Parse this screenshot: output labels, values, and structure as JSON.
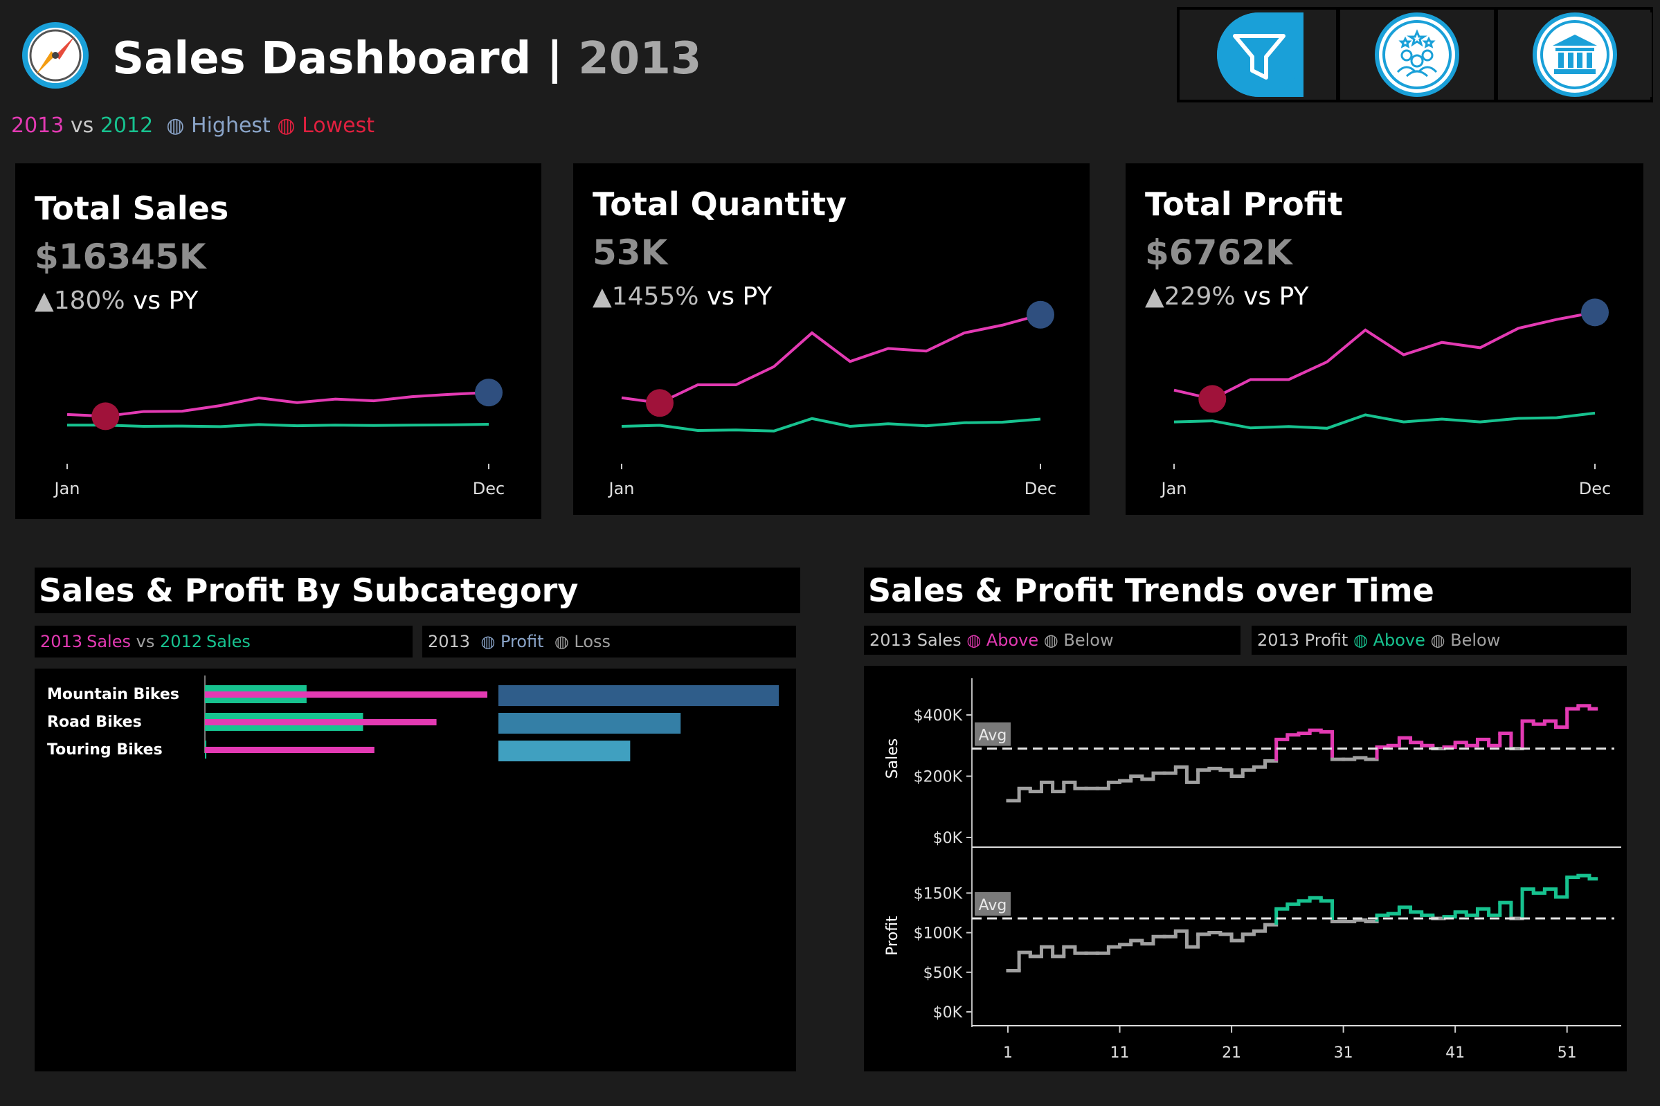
{
  "header": {
    "title": "Sales Dashboard",
    "separator": "|",
    "year": "2013",
    "logo_icon": "compass-icon",
    "nav": [
      {
        "icon": "filter-icon",
        "active": true
      },
      {
        "icon": "team-stars-icon",
        "active": false
      },
      {
        "icon": "bank-icon",
        "active": false
      }
    ]
  },
  "legend": {
    "current_year": "2013",
    "vs": "vs",
    "prior_year": "2012",
    "highest": "Highest",
    "lowest": "Lowest"
  },
  "colors": {
    "current": "#e33ab3",
    "prior": "#17c28f",
    "highest": "#2f4f7f",
    "lowest": "#a0123a",
    "bar_dark": "#2f5d8a",
    "bar_mid": "#347fa6",
    "bar_light": "#40a0c0",
    "nav_active": "#1aa0d8"
  },
  "kpis": [
    {
      "title": "Total Sales",
      "value": "$16345K",
      "delta_arrow": "▲",
      "delta_pct": "180%",
      "delta_label": "vs PY",
      "start_label": "Jan",
      "end_label": "Dec"
    },
    {
      "title": "Total Quantity",
      "value": "53K",
      "delta_arrow": "▲",
      "delta_pct": "1455%",
      "delta_label": "vs PY",
      "start_label": "Jan",
      "end_label": "Dec"
    },
    {
      "title": "Total Profit",
      "value": "$6762K",
      "delta_arrow": "▲",
      "delta_pct": "229%",
      "delta_label": "vs PY",
      "start_label": "Jan",
      "end_label": "Dec"
    }
  ],
  "subcategory": {
    "title": "Sales & Profit By Subcategory",
    "legend_left": {
      "y1": "2013",
      "s1": "Sales",
      "vs": "vs",
      "y2": "2012",
      "s2": "Sales"
    },
    "legend_right": {
      "year": "2013",
      "profit": "Profit",
      "loss": "Loss"
    }
  },
  "trends": {
    "title": "Sales & Profit Trends over Time",
    "legend_sales": {
      "year": "2013",
      "measure": "Sales",
      "above": "Above",
      "below": "Below"
    },
    "legend_profit": {
      "year": "2013",
      "measure": "Profit",
      "above": "Above",
      "below": "Below"
    },
    "avg_label": "Avg"
  },
  "chart_data": [
    {
      "type": "line",
      "x_labels": [
        "Jan",
        "Dec"
      ],
      "series": [
        {
          "values": [
            900,
            870,
            950,
            955,
            1050,
            1180,
            1100,
            1160,
            1130,
            1200,
            1240,
            1270
          ]
        },
        {
          "values": [
            720,
            720,
            700,
            705,
            695,
            730,
            710,
            720,
            715,
            720,
            725,
            735
          ]
        }
      ],
      "highest_index": 11,
      "lowest_index": 1,
      "ylim": [
        0,
        2800
      ]
    },
    {
      "type": "line",
      "x_labels": [
        "Jan",
        "Dec"
      ],
      "series": [
        {
          "values": [
            3350,
            3250,
            3600,
            3600,
            3950,
            4600,
            4050,
            4300,
            4250,
            4600,
            4750,
            4950
          ]
        },
        {
          "values": [
            2800,
            2820,
            2720,
            2730,
            2710,
            2950,
            2800,
            2850,
            2810,
            2870,
            2880,
            2940
          ]
        }
      ],
      "highest_index": 11,
      "lowest_index": 1,
      "ylim": [
        2000,
        5200
      ]
    },
    {
      "type": "line",
      "x_labels": [
        "Jan",
        "Dec"
      ],
      "series": [
        {
          "values": [
            370,
            345,
            400,
            400,
            450,
            540,
            470,
            505,
            490,
            545,
            570,
            590
          ]
        },
        {
          "values": [
            280,
            283,
            263,
            267,
            262,
            300,
            280,
            288,
            280,
            290,
            292,
            305
          ]
        }
      ],
      "highest_index": 11,
      "lowest_index": 1,
      "ylim": [
        150,
        620
      ]
    },
    {
      "type": "bar",
      "title": "Sales & Profit By Subcategory",
      "categories": [
        "Mountain Bikes",
        "Road Bikes",
        "Touring Bikes"
      ],
      "series": [
        {
          "name": "2013 Sales",
          "values": [
            100,
            82,
            60
          ]
        },
        {
          "name": "2012 Sales",
          "values": [
            36,
            56,
            0.5
          ]
        },
        {
          "name": "2013 Profit",
          "values": [
            100,
            65,
            47
          ]
        }
      ]
    },
    {
      "type": "line",
      "title": "Sales & Profit Trends over Time",
      "x_ticks": [
        1,
        11,
        21,
        31,
        41,
        51
      ],
      "panels": [
        {
          "ylabel": "Sales",
          "y_ticks": [
            "$400K",
            "$200K",
            "$0K"
          ],
          "y_tick_values": [
            400,
            200,
            0
          ],
          "ylim": [
            0,
            470
          ],
          "avg": 290,
          "values": [
            120,
            160,
            150,
            180,
            150,
            180,
            160,
            160,
            160,
            180,
            185,
            200,
            190,
            210,
            210,
            230,
            180,
            220,
            225,
            220,
            200,
            220,
            230,
            250,
            320,
            335,
            340,
            350,
            345,
            255,
            255,
            260,
            255,
            295,
            300,
            325,
            310,
            300,
            290,
            295,
            310,
            300,
            320,
            300,
            340,
            290,
            380,
            370,
            380,
            360,
            420,
            430,
            420
          ]
        },
        {
          "ylabel": "Profit",
          "y_ticks": [
            "$150K",
            "$100K",
            "$50K",
            "$0K"
          ],
          "y_tick_values": [
            150,
            100,
            50,
            0
          ],
          "ylim": [
            0,
            180
          ],
          "avg": 118,
          "values": [
            52,
            75,
            70,
            82,
            70,
            82,
            74,
            74,
            74,
            82,
            85,
            90,
            86,
            95,
            95,
            102,
            82,
            98,
            100,
            98,
            90,
            98,
            102,
            110,
            130,
            136,
            140,
            144,
            140,
            114,
            114,
            116,
            114,
            122,
            124,
            132,
            126,
            122,
            118,
            120,
            126,
            122,
            130,
            122,
            138,
            118,
            155,
            150,
            155,
            145,
            170,
            172,
            168
          ]
        }
      ]
    }
  ]
}
